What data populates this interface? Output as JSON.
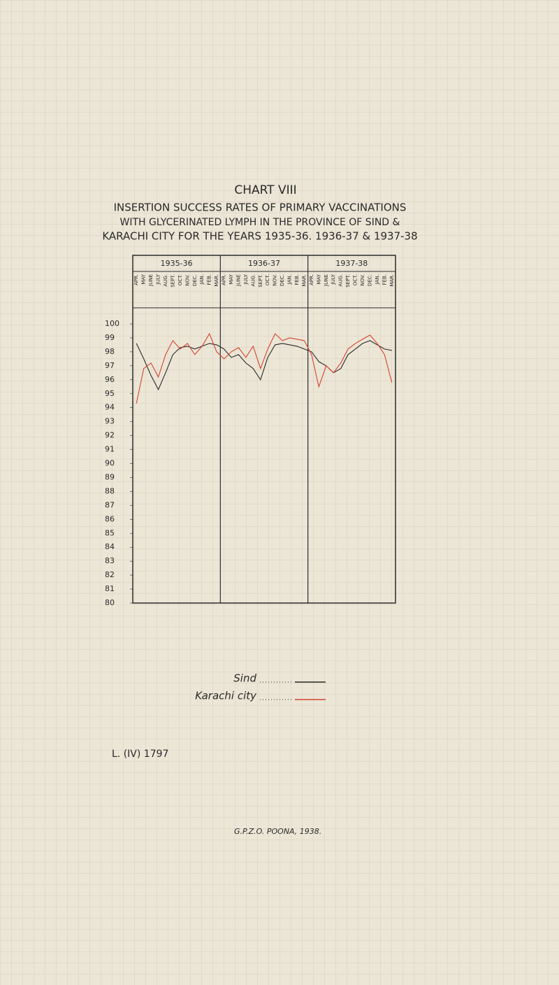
{
  "chart_data": {
    "type": "line",
    "title": "CHART VIII",
    "subtitle_lines": [
      "INSERTION SUCCESS RATES OF PRIMARY VACCINATIONS",
      "WITH GLYCERINATED LYMPH IN THE PROVINCE OF SIND &",
      "KARACHI CITY FOR THE YEARS 1935-36. 1936-37 & 1937-38"
    ],
    "groups": [
      "1935-36",
      "1936-37",
      "1937-38"
    ],
    "categories": [
      "APR.",
      "MAY",
      "JUNE",
      "JULY",
      "AUG.",
      "SEPT.",
      "OCT.",
      "NOV.",
      "DEC.",
      "JAN.",
      "FEB.",
      "MAR.",
      "APR.",
      "MAY",
      "JUNE",
      "JULY",
      "AUG.",
      "SEPT.",
      "OCT.",
      "NOV.",
      "DEC.",
      "JAN.",
      "FEB.",
      "MAR.",
      "APR.",
      "MAY",
      "JUNE",
      "JULY",
      "AUG.",
      "SEPT.",
      "OCT.",
      "NOV.",
      "DEC.",
      "JAN.",
      "FEB.",
      "MAR."
    ],
    "series": [
      {
        "name": "Sind",
        "color": "#2a2a2a",
        "values": [
          98.6,
          97.5,
          96.3,
          95.3,
          96.5,
          97.8,
          98.3,
          98.4,
          98.2,
          98.4,
          98.6,
          98.5,
          98.2,
          97.6,
          97.8,
          97.2,
          96.8,
          96.0,
          97.6,
          98.5,
          98.6,
          98.5,
          98.4,
          98.2,
          98.0,
          97.3,
          97.0,
          96.5,
          96.8,
          97.8,
          98.2,
          98.6,
          98.8,
          98.5,
          98.2,
          98.1
        ]
      },
      {
        "name": "Karachi city",
        "color": "#d2452f",
        "values": [
          94.3,
          96.8,
          97.2,
          96.2,
          97.8,
          98.8,
          98.2,
          98.6,
          97.8,
          98.4,
          99.3,
          98.0,
          97.5,
          98.0,
          98.3,
          97.6,
          98.4,
          96.8,
          98.2,
          99.3,
          98.8,
          99.0,
          98.9,
          98.8,
          97.8,
          95.5,
          97.0,
          96.5,
          97.2,
          98.2,
          98.6,
          98.9,
          99.2,
          98.6,
          97.8,
          95.8
        ]
      }
    ],
    "ylim": [
      80,
      100
    ],
    "yticks": [
      80,
      81,
      82,
      83,
      84,
      85,
      86,
      87,
      88,
      89,
      90,
      91,
      92,
      93,
      94,
      95,
      96,
      97,
      98,
      99,
      100
    ]
  },
  "footer": {
    "reference": "L. (IV) 1797",
    "printer": "G.P.Z.O. POONA, 1938."
  }
}
